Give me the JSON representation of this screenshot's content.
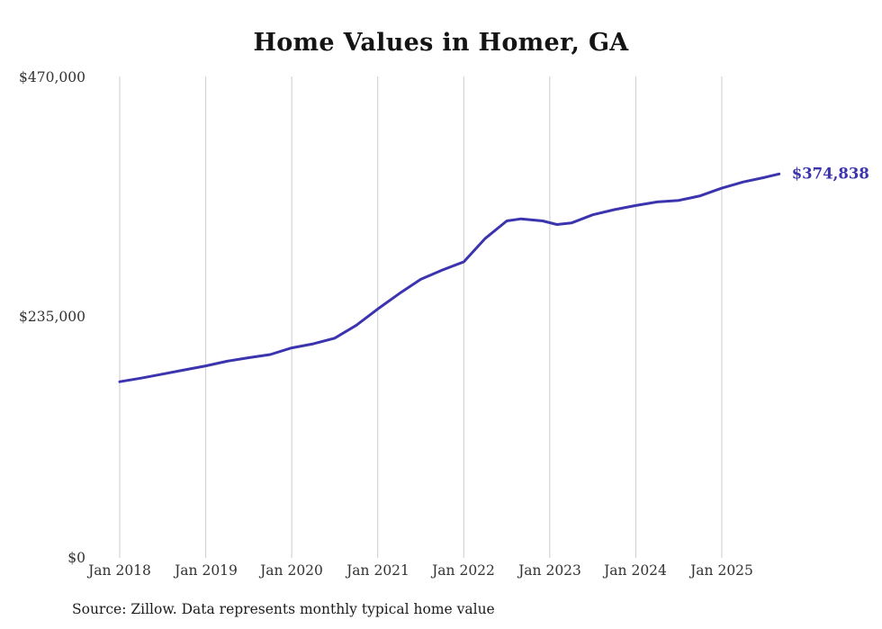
{
  "chart_data": {
    "type": "line",
    "title": "Home Values in Homer, GA",
    "xlabel": "",
    "ylabel": "",
    "ylim": [
      0,
      470000
    ],
    "y_ticks": [
      470000,
      235000,
      0
    ],
    "y_tick_labels": [
      "$470,000",
      "$235,000",
      "$0"
    ],
    "x_tick_labels": [
      "Jan 2018",
      "Jan 2019",
      "Jan 2020",
      "Jan 2021",
      "Jan 2022",
      "Jan 2023",
      "Jan 2024",
      "Jan 2025"
    ],
    "grid": "vertical-only",
    "legend_position": "none",
    "line_color": "#3b34ae",
    "grid_color": "#cccccc",
    "end_label": "$374,838",
    "series": [
      {
        "name": "Typical home value",
        "points": [
          [
            "2018-01",
            172000
          ],
          [
            "2018-04",
            175500
          ],
          [
            "2018-07",
            179500
          ],
          [
            "2018-10",
            183500
          ],
          [
            "2019-01",
            187500
          ],
          [
            "2019-04",
            192000
          ],
          [
            "2019-07",
            195500
          ],
          [
            "2019-10",
            198500
          ],
          [
            "2020-01",
            205000
          ],
          [
            "2020-04",
            209000
          ],
          [
            "2020-07",
            214500
          ],
          [
            "2020-10",
            227000
          ],
          [
            "2021-01",
            243000
          ],
          [
            "2021-04",
            258000
          ],
          [
            "2021-07",
            272000
          ],
          [
            "2021-10",
            281000
          ],
          [
            "2022-01",
            289000
          ],
          [
            "2022-04",
            312000
          ],
          [
            "2022-07",
            329000
          ],
          [
            "2022-09",
            331000
          ],
          [
            "2022-12",
            329000
          ],
          [
            "2023-02",
            325500
          ],
          [
            "2023-04",
            327000
          ],
          [
            "2023-07",
            335000
          ],
          [
            "2023-10",
            340000
          ],
          [
            "2024-01",
            344000
          ],
          [
            "2024-04",
            347500
          ],
          [
            "2024-07",
            349000
          ],
          [
            "2024-10",
            353500
          ],
          [
            "2025-01",
            361000
          ],
          [
            "2025-04",
            367000
          ],
          [
            "2025-07",
            371500
          ],
          [
            "2025-09",
            374838
          ]
        ]
      }
    ]
  },
  "footer": {
    "source": "Source: Zillow. Data represents monthly typical home value"
  }
}
